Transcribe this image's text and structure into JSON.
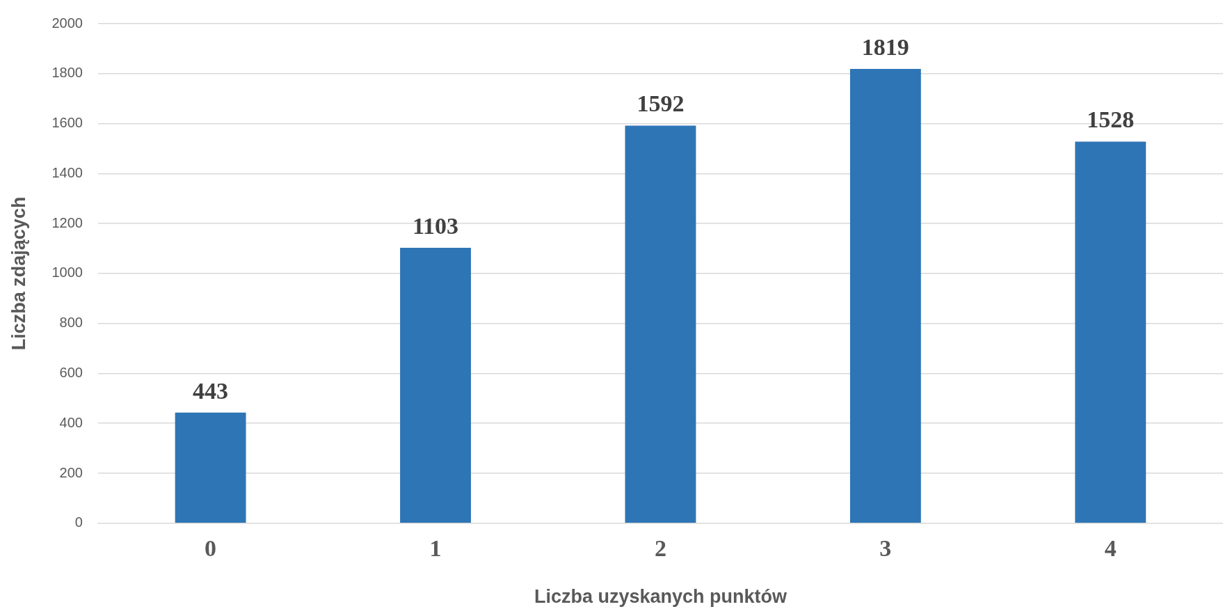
{
  "chart_data": {
    "type": "bar",
    "xlabel": "Liczba uzyskanych punktów",
    "ylabel": "Liczba zdających",
    "categories": [
      "0",
      "1",
      "2",
      "3",
      "4"
    ],
    "values": [
      443,
      1103,
      1592,
      1819,
      1528
    ],
    "color": "#2e75b6",
    "ylim": [
      0,
      2000
    ],
    "yticks": [
      0,
      200,
      400,
      600,
      800,
      1000,
      1200,
      1400,
      1600,
      1800,
      2000
    ],
    "grid": "y",
    "legend": false,
    "data_labels": true
  }
}
